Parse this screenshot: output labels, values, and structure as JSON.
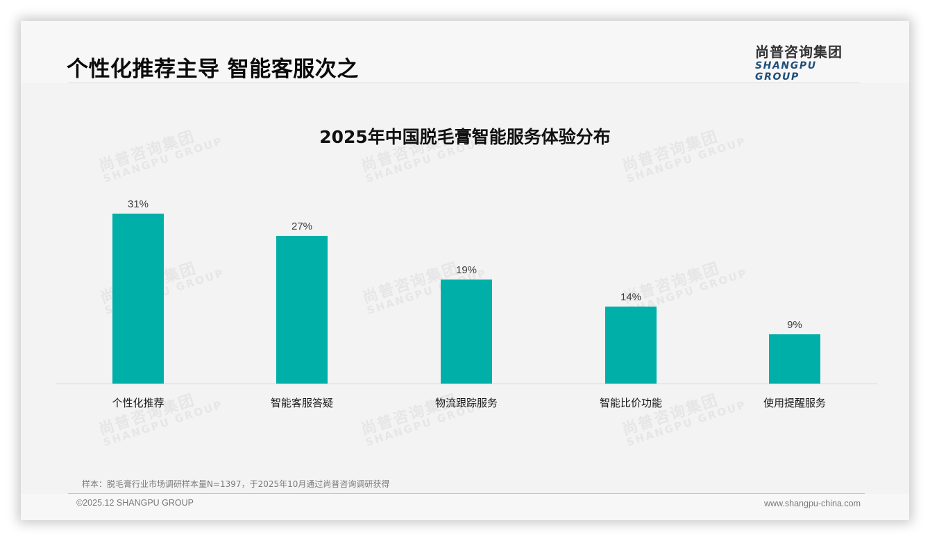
{
  "page": {
    "title": "个性化推荐主导 智能客服次之",
    "logo": {
      "cn": "尚普咨询集团",
      "en": "SHANGPU GROUP"
    },
    "watermark": {
      "cn": "尚普咨询集团",
      "en": "SHANGPU GROUP"
    },
    "source_note": "样本：脱毛膏行业市场调研样本量N=1397，于2025年10月通过尚普咨询调研获得",
    "copyright": "©2025.12 SHANGPU GROUP",
    "website": "www.shangpu-china.com"
  },
  "colors": {
    "bar": "#00afa8",
    "title": "#0b0b0b",
    "logo_en": "#1e4f7a",
    "background": "#f3f3f3"
  },
  "chart_data": {
    "type": "bar",
    "title": "2025年中国脱毛膏智能服务体验分布",
    "categories": [
      "个性化推荐",
      "智能客服答疑",
      "物流跟踪服务",
      "智能比价功能",
      "使用提醒服务"
    ],
    "values": [
      31,
      27,
      19,
      14,
      9
    ],
    "value_labels": [
      "31%",
      "27%",
      "19%",
      "14%",
      "9%"
    ],
    "unit": "%",
    "xlabel": "",
    "ylabel": "",
    "ylim": [
      0,
      31
    ],
    "grid": false,
    "legend": null,
    "y_axis_visible": false
  }
}
